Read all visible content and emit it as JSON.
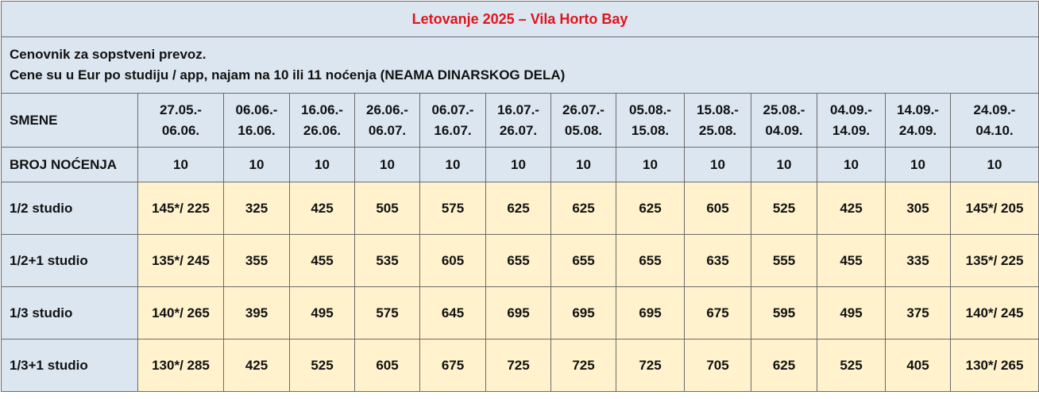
{
  "header": {
    "title": "Letovanje 2025 – Vila Horto Bay"
  },
  "notes": [
    "Cenovnik za sopstveni prevoz.",
    "Cene su u Eur po studiju / app, najam na 10 ili 11 noćenja (NEAMA DINARSKOG DELA)"
  ],
  "table": {
    "period_label": "SMENE",
    "periods": [
      [
        "27.05.-",
        "06.06."
      ],
      [
        "06.06.-",
        "16.06."
      ],
      [
        "16.06.-",
        "26.06."
      ],
      [
        "26.06.-",
        "06.07."
      ],
      [
        "06.07.-",
        "16.07."
      ],
      [
        "16.07.-",
        "26.07."
      ],
      [
        "26.07.-",
        "05.08."
      ],
      [
        "05.08.-",
        "15.08."
      ],
      [
        "15.08.-",
        "25.08."
      ],
      [
        "25.08.-",
        "04.09."
      ],
      [
        "04.09.-",
        "14.09."
      ],
      [
        "14.09.-",
        "24.09."
      ],
      [
        "24.09.-",
        "04.10."
      ]
    ],
    "nights_label": "BROJ NOĆENJA",
    "nights": [
      10,
      10,
      10,
      10,
      10,
      10,
      10,
      10,
      10,
      10,
      10,
      10,
      10
    ],
    "rows": [
      {
        "label": "1/2 studio",
        "prices": [
          "145*/ 225",
          "325",
          "425",
          "505",
          "575",
          "625",
          "625",
          "625",
          "605",
          "525",
          "425",
          "305",
          "145*/ 205"
        ]
      },
      {
        "label": "1/2+1 studio",
        "prices": [
          "135*/ 245",
          "355",
          "455",
          "535",
          "605",
          "655",
          "655",
          "655",
          "635",
          "555",
          "455",
          "335",
          "135*/ 225"
        ]
      },
      {
        "label": "1/3 studio",
        "prices": [
          "140*/ 265",
          "395",
          "495",
          "575",
          "645",
          "695",
          "695",
          "695",
          "675",
          "595",
          "495",
          "375",
          "140*/ 245"
        ]
      },
      {
        "label": "1/3+1 studio",
        "prices": [
          "130*/ 285",
          "425",
          "525",
          "605",
          "675",
          "725",
          "725",
          "725",
          "705",
          "625",
          "525",
          "405",
          "130*/ 265"
        ]
      }
    ]
  }
}
